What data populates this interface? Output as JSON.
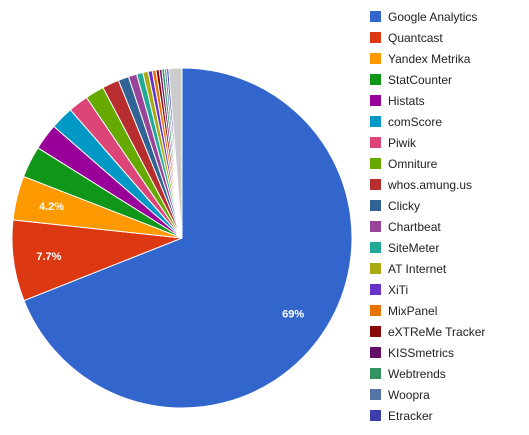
{
  "chart_data": {
    "type": "pie",
    "title": "",
    "legend_position": "right",
    "start": "top, clockwise",
    "slices": [
      {
        "label": "Google Analytics",
        "value": 69,
        "color": "#3366cc",
        "data_label": "69%"
      },
      {
        "label": "Quantcast",
        "value": 7.7,
        "color": "#dc3912",
        "data_label": "7.7%"
      },
      {
        "label": "Yandex Metrika",
        "value": 4.2,
        "color": "#ff9900",
        "data_label": "4.2%"
      },
      {
        "label": "StatCounter",
        "value": 3.0,
        "color": "#109618",
        "data_label": ""
      },
      {
        "label": "Histats",
        "value": 2.5,
        "color": "#990099",
        "data_label": ""
      },
      {
        "label": "comScore",
        "value": 2.2,
        "color": "#0099c6",
        "data_label": ""
      },
      {
        "label": "Piwik",
        "value": 1.9,
        "color": "#dd4477",
        "data_label": ""
      },
      {
        "label": "Omniture",
        "value": 1.8,
        "color": "#66aa00",
        "data_label": ""
      },
      {
        "label": "whos.amung.us",
        "value": 1.6,
        "color": "#b82e2e",
        "data_label": ""
      },
      {
        "label": "Clicky",
        "value": 1.0,
        "color": "#316395",
        "data_label": ""
      },
      {
        "label": "Chartbeat",
        "value": 0.8,
        "color": "#994499",
        "data_label": ""
      },
      {
        "label": "SiteMeter",
        "value": 0.6,
        "color": "#22aa99",
        "data_label": ""
      },
      {
        "label": "AT Internet",
        "value": 0.5,
        "color": "#aaaa11",
        "data_label": ""
      },
      {
        "label": "XiTi",
        "value": 0.4,
        "color": "#6633cc",
        "data_label": ""
      },
      {
        "label": "MixPanel",
        "value": 0.35,
        "color": "#e67300",
        "data_label": ""
      },
      {
        "label": "eXTReMe Tracker",
        "value": 0.3,
        "color": "#8b0707",
        "data_label": ""
      },
      {
        "label": "KISSmetrics",
        "value": 0.25,
        "color": "#651067",
        "data_label": ""
      },
      {
        "label": "Webtrends",
        "value": 0.25,
        "color": "#329262",
        "data_label": ""
      },
      {
        "label": "Woopra",
        "value": 0.2,
        "color": "#5574a6",
        "data_label": ""
      },
      {
        "label": "Etracker",
        "value": 0.2,
        "color": "#3b3eac",
        "data_label": ""
      },
      {
        "label": "Other",
        "value": 1.25,
        "color": "#cccccc",
        "data_label": "",
        "in_legend": false
      }
    ]
  }
}
